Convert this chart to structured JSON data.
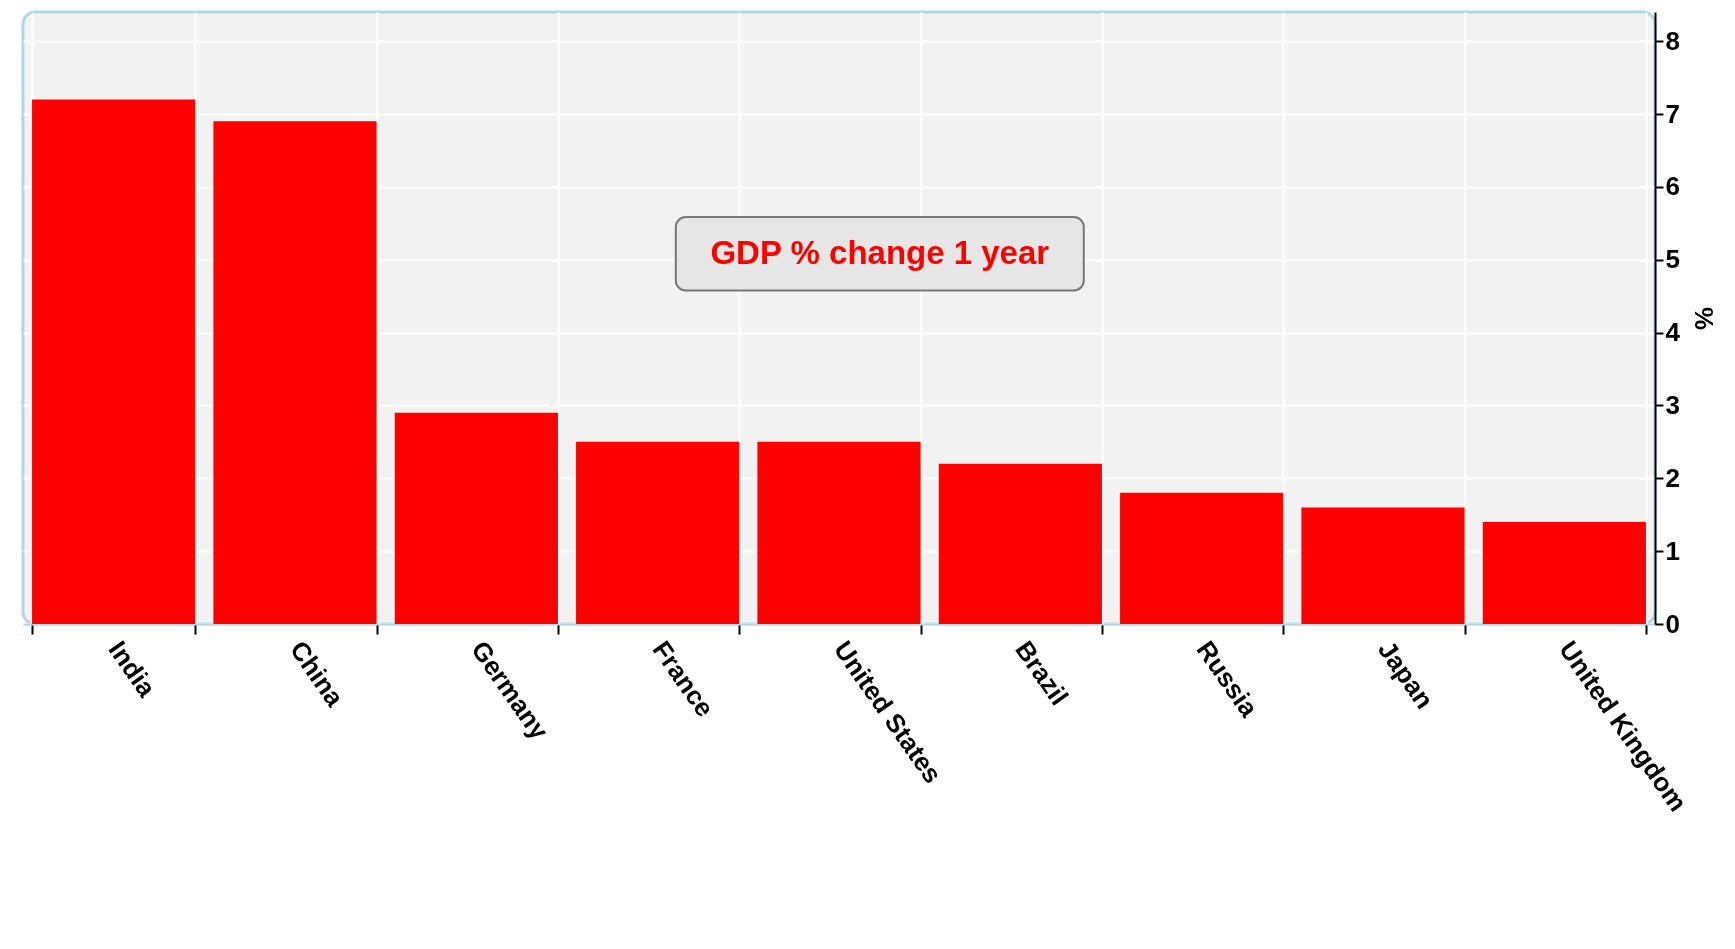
{
  "chart_data": {
    "type": "bar",
    "title": "GDP % change 1 year",
    "ylabel": "%",
    "categories": [
      "India",
      "China",
      "Germany",
      "France",
      "United States",
      "Brazil",
      "Russia",
      "Japan",
      "United Kingdom"
    ],
    "values": [
      7.2,
      6.9,
      2.9,
      2.5,
      2.5,
      2.2,
      1.8,
      1.6,
      1.4
    ],
    "color": "#ff0000",
    "ylim": [
      0,
      8.4
    ],
    "yticks": [
      0,
      1,
      2,
      3,
      4,
      5,
      6,
      7,
      8
    ],
    "grid": true
  }
}
